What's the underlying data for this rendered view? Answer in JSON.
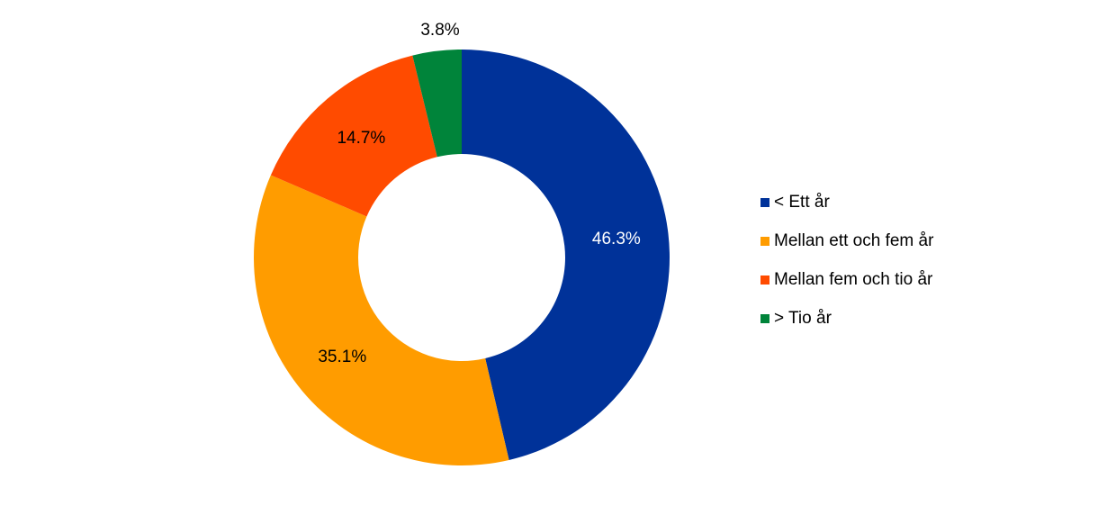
{
  "chart_data": {
    "type": "donut",
    "categories": [
      "< Ett år",
      "Mellan ett och fem år",
      "Mellan fem och tio år",
      "> Tio år"
    ],
    "values": [
      46.3,
      35.1,
      14.7,
      3.8
    ],
    "value_labels": [
      "46.3%",
      "35.1%",
      "14.7%",
      "3.8%"
    ],
    "colors": [
      "#003299",
      "#ff9c00",
      "#ff4b00",
      "#00843a"
    ],
    "legend": "right"
  }
}
